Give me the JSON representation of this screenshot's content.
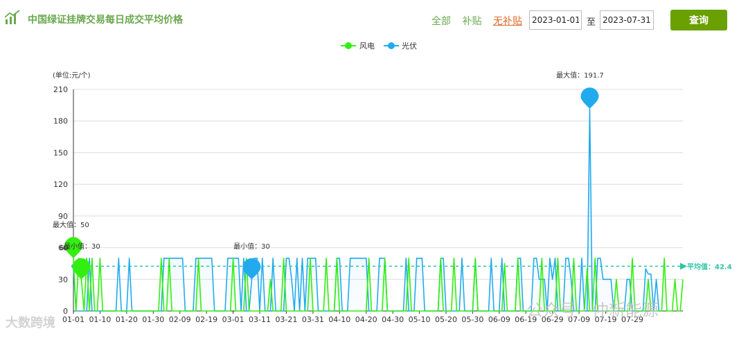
{
  "header": {
    "title": "中国绿证挂牌交易每日成交平均价格",
    "filters": {
      "all": "全部",
      "subsidy": "补贴",
      "no_subsidy": "无补贴"
    },
    "start_date": "2023-01-01",
    "to_label": "至",
    "end_date": "2023-07-31",
    "query_label": "查询",
    "accent": "#6aa000"
  },
  "watermarks": {
    "left": "大数跨境",
    "right": "公众号 · 仲新能源"
  },
  "chart_data": {
    "type": "line",
    "ylabel": "(单位:元/个)",
    "ylim": [
      0,
      210
    ],
    "yticks": [
      0,
      30,
      60,
      90,
      120,
      150,
      180,
      210
    ],
    "x_tick_labels": [
      "01-01",
      "01-10",
      "01-20",
      "01-30",
      "02-09",
      "02-19",
      "03-01",
      "03-11",
      "03-21",
      "03-31",
      "04-10",
      "04-20",
      "04-30",
      "05-10",
      "05-20",
      "05-30",
      "06-09",
      "06-19",
      "06-29",
      "07-09",
      "07-19",
      "07-29"
    ],
    "grid": true,
    "legend_position": "top-center",
    "series": [
      {
        "name": "风电",
        "color": "#33ee11",
        "values": [
          50,
          0,
          50,
          30,
          0,
          50,
          0,
          50,
          0,
          0,
          50,
          0,
          0,
          0,
          0,
          0,
          0,
          0,
          0,
          0,
          0,
          0,
          0,
          0,
          0,
          0,
          0,
          0,
          0,
          0,
          0,
          0,
          0,
          50,
          0,
          0,
          50,
          0,
          0,
          0,
          0,
          0,
          0,
          0,
          0,
          0,
          0,
          50,
          0,
          0,
          0,
          0,
          0,
          0,
          0,
          0,
          0,
          0,
          0,
          0,
          50,
          0,
          0,
          0,
          0,
          50,
          0,
          0,
          0,
          0,
          0,
          0,
          0,
          0,
          30,
          0,
          0,
          0,
          0,
          50,
          0,
          0,
          0,
          0,
          0,
          0,
          0,
          0,
          0,
          50,
          0,
          0,
          0,
          0,
          0,
          50,
          0,
          0,
          0,
          50,
          0,
          0,
          0,
          0,
          0,
          0,
          0,
          0,
          0,
          0,
          0,
          50,
          0,
          0,
          0,
          0,
          0,
          50,
          0,
          0,
          0,
          0,
          0,
          0,
          0,
          0,
          50,
          0,
          0,
          0,
          0,
          0,
          0,
          0,
          0,
          0,
          0,
          0,
          50,
          0,
          0,
          0,
          0,
          50,
          0,
          0,
          0,
          0,
          0,
          0,
          0,
          50,
          0,
          0,
          0,
          0,
          0,
          0,
          0,
          0,
          0,
          0,
          45,
          0,
          0,
          0,
          0,
          50,
          0,
          0,
          0,
          0,
          0,
          0,
          0,
          0,
          50,
          0,
          0,
          0,
          0,
          0,
          50,
          0,
          0,
          0,
          0,
          0,
          50,
          0,
          0,
          0,
          0,
          40,
          0,
          0,
          50,
          0,
          0,
          0,
          0,
          0,
          0,
          0,
          30,
          0,
          0,
          0,
          0,
          0,
          50,
          0,
          0,
          0,
          0,
          0,
          30,
          0,
          0,
          0,
          0,
          0,
          50,
          0,
          0,
          0,
          30,
          0,
          0,
          30
        ],
        "mark_points": [
          {
            "label": "最大值",
            "value": 50
          },
          {
            "label": "最小值",
            "value": 30
          }
        ]
      },
      {
        "name": "光伏",
        "color": "#22aaee",
        "values": [
          42,
          0,
          0,
          0,
          0,
          0,
          50,
          0,
          0,
          0,
          0,
          0,
          0,
          0,
          0,
          0,
          0,
          50,
          0,
          0,
          0,
          50,
          0,
          0,
          0,
          0,
          0,
          0,
          0,
          0,
          0,
          0,
          0,
          0,
          50,
          50,
          50,
          50,
          50,
          50,
          50,
          50,
          0,
          0,
          0,
          0,
          50,
          50,
          50,
          50,
          50,
          50,
          50,
          0,
          0,
          0,
          0,
          0,
          50,
          50,
          50,
          50,
          50,
          0,
          50,
          0,
          0,
          30,
          50,
          50,
          0,
          50,
          0,
          0,
          0,
          50,
          0,
          0,
          0,
          0,
          50,
          50,
          30,
          0,
          50,
          0,
          50,
          0,
          50,
          50,
          50,
          50,
          0,
          0,
          0,
          0,
          0,
          0,
          0,
          50,
          50,
          0,
          0,
          0,
          50,
          50,
          50,
          50,
          50,
          50,
          50,
          0,
          0,
          0,
          0,
          50,
          50,
          50,
          0,
          0,
          0,
          0,
          0,
          0,
          0,
          50,
          0,
          0,
          0,
          50,
          50,
          50,
          0,
          0,
          0,
          0,
          0,
          0,
          50,
          50,
          0,
          0,
          0,
          0,
          0,
          0,
          50,
          0,
          0,
          0,
          0,
          50,
          0,
          0,
          0,
          0,
          0,
          50,
          0,
          0,
          0,
          50,
          0,
          0,
          0,
          0,
          0,
          50,
          50,
          0,
          0,
          0,
          0,
          50,
          50,
          30,
          30,
          30,
          0,
          50,
          30,
          50,
          0,
          0,
          0,
          50,
          50,
          30,
          0,
          0,
          0,
          50,
          0,
          0,
          191.7,
          0,
          0,
          50,
          50,
          30,
          30,
          30,
          30,
          0,
          0,
          0,
          0,
          0,
          30,
          30,
          0,
          0,
          0,
          0,
          0,
          40,
          35,
          35,
          0,
          30,
          0,
          0
        ],
        "mark_points": [
          {
            "label": "最大值",
            "value": 191.7
          },
          {
            "label": "最小值",
            "value": 30
          }
        ]
      }
    ],
    "mark_line": {
      "label": "平均值",
      "value": 42.4
    },
    "max_label": "最大值：50",
    "min_label": "最小值：30",
    "pv_max_label": "最大值：191.7",
    "pv_min_label": "最小值：30",
    "avg_label": "平均值：42.4",
    "dup_label": "60"
  }
}
